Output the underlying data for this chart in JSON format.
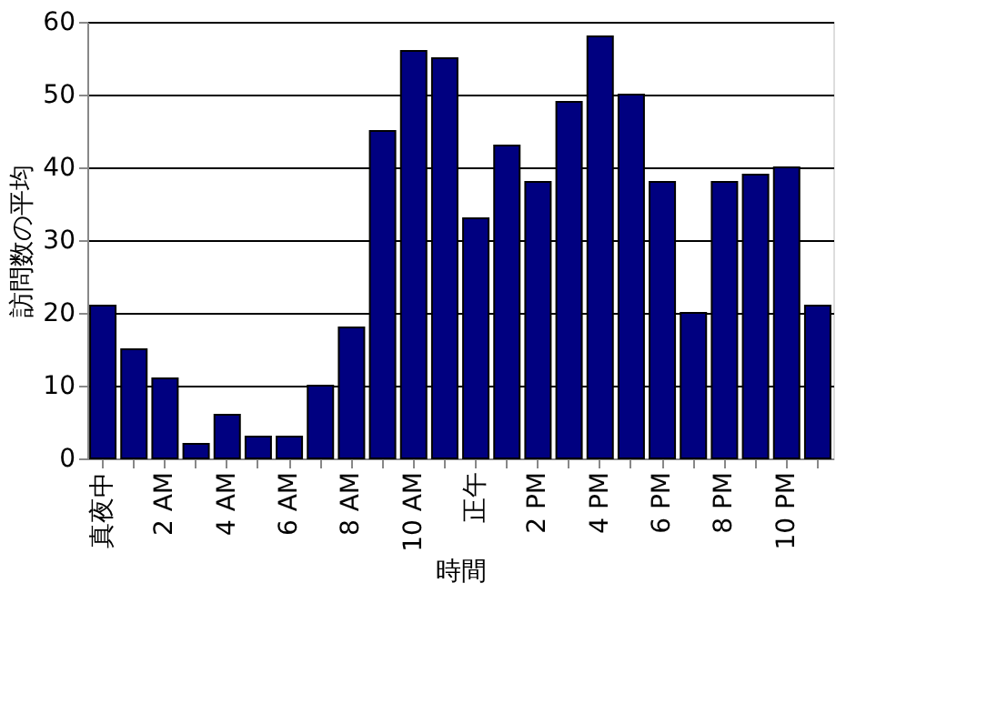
{
  "chart_data": {
    "type": "bar",
    "xlabel": "時間",
    "ylabel": "訪問数の平均",
    "categories": [
      "真夜中",
      null,
      "2 AM",
      null,
      "4 AM",
      null,
      "6 AM",
      null,
      "8 AM",
      null,
      "10 AM",
      null,
      "正午",
      null,
      "2 PM",
      null,
      "4 PM",
      null,
      "6 PM",
      null,
      "8 PM",
      null,
      "10 PM",
      null
    ],
    "values": [
      21,
      15,
      11,
      2,
      6,
      3,
      3,
      10,
      18,
      45,
      56,
      55,
      33,
      43,
      38,
      49,
      58,
      50,
      38,
      20,
      38,
      39,
      40,
      21
    ],
    "color": "#000080",
    "ylim": [
      0,
      60
    ],
    "yticks": [
      0,
      10,
      20,
      30,
      40,
      50,
      60
    ],
    "grid": "y"
  }
}
